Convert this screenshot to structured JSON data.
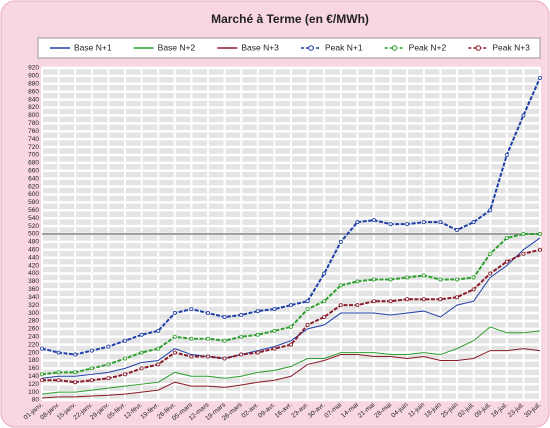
{
  "chart_data": {
    "type": "line",
    "title": "Marché à Terme     (en €/MWh)",
    "categories": [
      "01-janv.",
      "08-janv.",
      "15-janv.",
      "22-janv.",
      "29-janv.",
      "05-févr.",
      "12-févr.",
      "19-févr.",
      "26-févr.",
      "05-mars",
      "12-mars",
      "19-mars",
      "26-mars",
      "02-avr.",
      "09-avr.",
      "16-avr.",
      "23-avr.",
      "30-avr.",
      "07-mai",
      "14-mai",
      "21-mai",
      "28-mai",
      "04-juin",
      "11-juin",
      "18-juin",
      "25-juin",
      "02-juil.",
      "09-juil.",
      "16-juil.",
      "23-juil.",
      "30-juil."
    ],
    "series": [
      {
        "name": "Base N+1",
        "color": "#1f3fa8",
        "marker": false,
        "values": [
          135,
          140,
          140,
          145,
          150,
          160,
          175,
          180,
          210,
          195,
          190,
          185,
          195,
          205,
          215,
          230,
          260,
          270,
          300,
          300,
          300,
          295,
          300,
          305,
          290,
          320,
          330,
          390,
          420,
          460,
          490
        ]
      },
      {
        "name": "Base N+2",
        "color": "#2e9e2e",
        "marker": false,
        "values": [
          95,
          100,
          100,
          105,
          110,
          115,
          120,
          125,
          150,
          140,
          140,
          135,
          140,
          150,
          155,
          165,
          185,
          185,
          200,
          200,
          200,
          195,
          195,
          200,
          195,
          210,
          230,
          265,
          250,
          250,
          255
        ]
      },
      {
        "name": "Base N+3",
        "color": "#8b1a2b",
        "marker": false,
        "values": [
          85,
          88,
          88,
          90,
          92,
          95,
          100,
          105,
          125,
          115,
          115,
          112,
          118,
          125,
          130,
          140,
          170,
          180,
          195,
          195,
          190,
          190,
          185,
          190,
          180,
          180,
          185,
          205,
          205,
          210,
          205
        ]
      },
      {
        "name": "Peak N+1",
        "color": "#1f3fa8",
        "marker": true,
        "values": [
          210,
          200,
          195,
          205,
          215,
          230,
          245,
          255,
          300,
          310,
          300,
          290,
          295,
          305,
          310,
          320,
          330,
          400,
          480,
          530,
          535,
          525,
          525,
          530,
          530,
          510,
          530,
          560,
          700,
          800,
          895
        ]
      },
      {
        "name": "Peak N+2",
        "color": "#2e9e2e",
        "marker": true,
        "values": [
          145,
          150,
          150,
          160,
          170,
          185,
          200,
          210,
          240,
          235,
          235,
          230,
          240,
          245,
          255,
          265,
          310,
          330,
          370,
          380,
          385,
          385,
          390,
          395,
          385,
          385,
          390,
          450,
          490,
          500,
          500
        ]
      },
      {
        "name": "Peak N+3",
        "color": "#8b1a2b",
        "marker": true,
        "values": [
          130,
          130,
          125,
          130,
          135,
          145,
          160,
          170,
          200,
          190,
          190,
          185,
          195,
          200,
          210,
          220,
          270,
          290,
          320,
          320,
          330,
          330,
          335,
          335,
          335,
          340,
          360,
          400,
          430,
          450,
          460
        ]
      }
    ],
    "ylim": [
      80,
      920
    ],
    "yticks": [
      80,
      100,
      120,
      140,
      160,
      180,
      200,
      220,
      240,
      260,
      280,
      300,
      320,
      340,
      360,
      380,
      400,
      420,
      440,
      460,
      480,
      500,
      520,
      540,
      560,
      580,
      600,
      620,
      640,
      660,
      680,
      700,
      720,
      740,
      760,
      780,
      800,
      820,
      840,
      860,
      880,
      900,
      920
    ],
    "reference_line": 500,
    "grid": true
  }
}
